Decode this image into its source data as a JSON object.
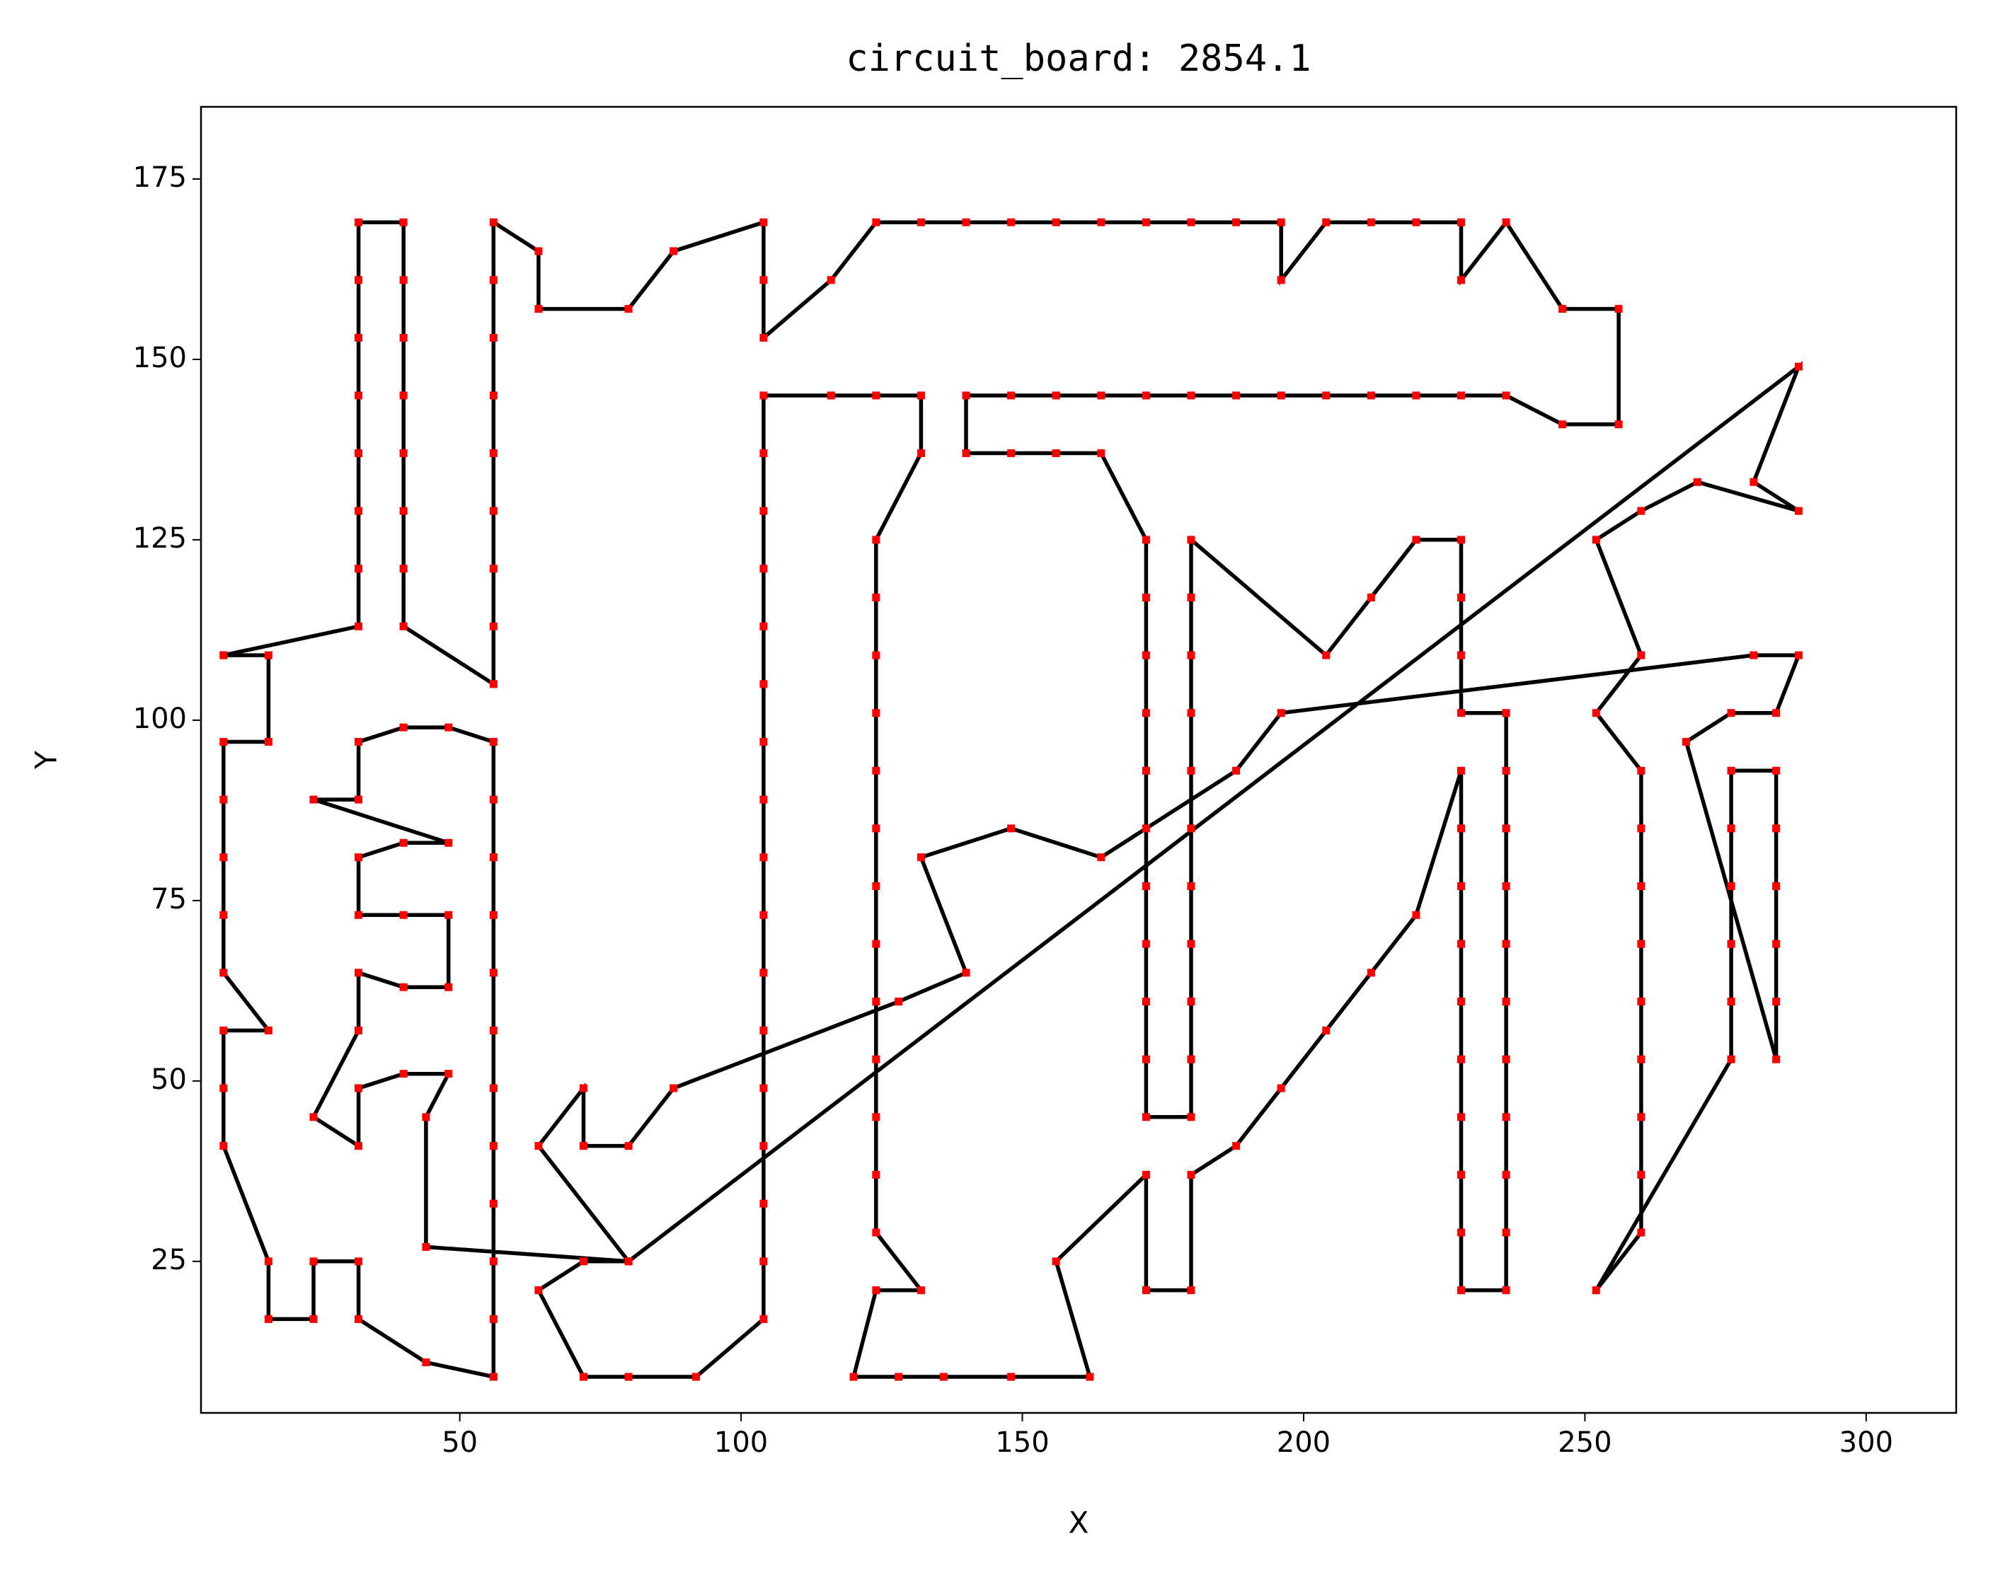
{
  "chart_data": {
    "type": "line",
    "title": "circuit_board: 2854.1",
    "x_label": "X",
    "y_label": "Y",
    "line_color": "#000000",
    "marker_color": "#ff0000",
    "xlim": [
      4,
      316
    ],
    "ylim": [
      4,
      185
    ],
    "xticks": [
      50,
      100,
      150,
      200,
      250,
      300
    ],
    "yticks": [
      25,
      50,
      75,
      100,
      125,
      150,
      175
    ],
    "x": [
      8,
      32,
      32,
      32,
      32,
      32,
      32,
      32,
      32,
      40,
      40,
      40,
      40,
      40,
      40,
      40,
      40,
      56,
      56,
      56,
      56,
      56,
      56,
      56,
      56,
      56,
      64,
      64,
      80,
      88,
      104,
      104,
      104,
      116,
      124,
      132,
      140,
      148,
      156,
      164,
      172,
      180,
      188,
      196,
      196,
      204,
      212,
      220,
      228,
      228,
      236,
      246,
      256,
      256,
      246,
      236,
      228,
      220,
      212,
      204,
      196,
      188,
      180,
      172,
      164,
      156,
      148,
      140,
      140,
      148,
      156,
      164,
      172,
      172,
      172,
      172,
      172,
      172,
      172,
      172,
      172,
      172,
      172,
      180,
      180,
      180,
      180,
      180,
      180,
      180,
      180,
      180,
      180,
      180,
      204,
      212,
      220,
      228,
      228,
      228,
      228,
      236,
      236,
      236,
      236,
      236,
      236,
      236,
      236,
      236,
      236,
      236,
      228,
      228,
      228,
      228,
      228,
      228,
      228,
      228,
      228,
      228,
      220,
      212,
      204,
      196,
      188,
      180,
      180,
      172,
      172,
      156,
      162,
      148,
      136,
      128,
      120,
      124,
      132,
      124,
      124,
      124,
      124,
      124,
      124,
      124,
      124,
      124,
      124,
      124,
      124,
      124,
      132,
      132,
      124,
      116,
      104,
      104,
      104,
      104,
      104,
      104,
      104,
      104,
      104,
      104,
      104,
      104,
      104,
      104,
      104,
      104,
      104,
      92,
      80,
      72,
      64,
      72,
      80,
      288,
      280,
      288,
      270,
      260,
      252,
      260,
      252,
      260,
      260,
      260,
      260,
      260,
      260,
      260,
      260,
      260,
      252,
      276,
      276,
      276,
      276,
      276,
      276,
      284,
      284,
      284,
      284,
      284,
      284,
      268,
      276,
      284,
      288,
      280,
      196,
      188,
      164,
      148,
      132,
      140,
      128,
      88,
      80,
      72,
      72,
      64,
      80,
      44,
      44,
      48,
      40,
      32,
      32,
      24,
      32,
      32,
      40,
      48,
      48,
      40,
      32,
      32,
      40,
      48,
      24,
      32,
      32,
      40,
      48,
      56,
      56,
      56,
      56,
      56,
      56,
      56,
      56,
      56,
      56,
      56,
      56,
      44,
      32,
      32,
      24,
      24,
      16,
      16,
      8,
      8,
      8,
      16,
      8,
      8,
      8,
      8,
      8,
      16,
      16,
      8
    ],
    "values": [
      109,
      113,
      121,
      129,
      137,
      145,
      153,
      161,
      169,
      169,
      161,
      153,
      145,
      137,
      129,
      121,
      113,
      105,
      113,
      121,
      129,
      137,
      145,
      153,
      161,
      169,
      165,
      157,
      157,
      165,
      169,
      161,
      153,
      161,
      169,
      169,
      169,
      169,
      169,
      169,
      169,
      169,
      169,
      169,
      161,
      169,
      169,
      169,
      169,
      161,
      169,
      157,
      157,
      141,
      141,
      145,
      145,
      145,
      145,
      145,
      145,
      145,
      145,
      145,
      145,
      145,
      145,
      145,
      137,
      137,
      137,
      137,
      125,
      117,
      109,
      101,
      93,
      85,
      77,
      69,
      61,
      53,
      45,
      45,
      53,
      61,
      69,
      77,
      85,
      93,
      101,
      109,
      117,
      125,
      109,
      117,
      125,
      125,
      117,
      109,
      101,
      101,
      93,
      85,
      77,
      69,
      61,
      53,
      45,
      37,
      29,
      21,
      21,
      29,
      37,
      45,
      53,
      61,
      69,
      77,
      85,
      93,
      73,
      65,
      57,
      49,
      41,
      37,
      21,
      21,
      37,
      25,
      9,
      9,
      9,
      9,
      9,
      21,
      21,
      29,
      37,
      45,
      53,
      61,
      69,
      77,
      85,
      93,
      101,
      109,
      117,
      125,
      137,
      145,
      145,
      145,
      145,
      137,
      129,
      121,
      113,
      105,
      97,
      89,
      81,
      73,
      65,
      57,
      49,
      41,
      33,
      25,
      17,
      9,
      9,
      9,
      21,
      25,
      25,
      149,
      133,
      129,
      133,
      129,
      125,
      109,
      101,
      93,
      85,
      77,
      69,
      61,
      53,
      45,
      37,
      29,
      21,
      53,
      61,
      69,
      77,
      85,
      93,
      93,
      85,
      77,
      69,
      61,
      53,
      97,
      101,
      101,
      109,
      109,
      101,
      93,
      81,
      85,
      81,
      65,
      61,
      49,
      41,
      41,
      49,
      41,
      25,
      27,
      45,
      51,
      51,
      49,
      41,
      45,
      57,
      65,
      63,
      63,
      73,
      73,
      73,
      81,
      83,
      83,
      89,
      89,
      97,
      99,
      99,
      97,
      89,
      81,
      73,
      65,
      57,
      49,
      41,
      33,
      25,
      17,
      9,
      11,
      17,
      25,
      25,
      17,
      17,
      25,
      41,
      49,
      57,
      57,
      65,
      73,
      81,
      89,
      97,
      97,
      109,
      109
    ]
  }
}
